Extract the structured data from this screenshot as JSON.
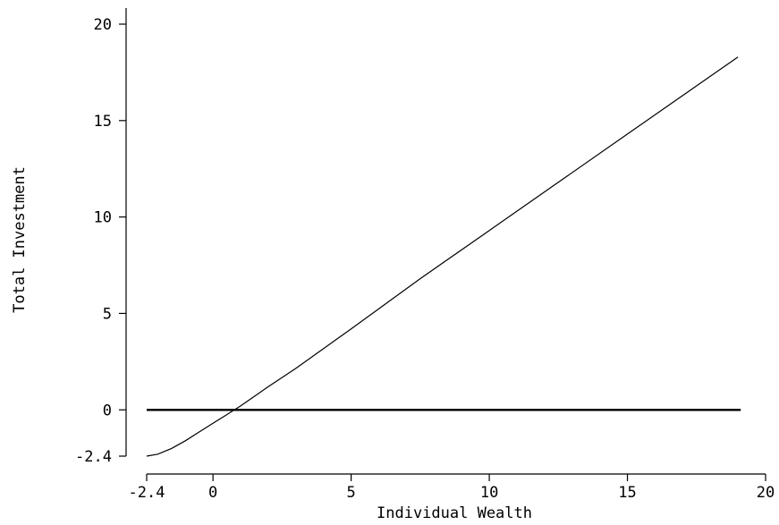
{
  "chart_data": {
    "type": "line",
    "title": "",
    "xlabel": "Individual Wealth",
    "ylabel": "Total Investment",
    "xlim": [
      -2.4,
      20
    ],
    "ylim": [
      -2.4,
      20
    ],
    "x_ticks": [
      -2.4,
      0,
      5,
      10,
      15,
      20
    ],
    "y_ticks": [
      -2.4,
      0,
      5,
      10,
      15,
      20
    ],
    "x_tick_labels": [
      "-2.4",
      "0",
      "5",
      "10",
      "15",
      "20"
    ],
    "y_tick_labels": [
      "-2.4",
      "0",
      "5",
      "10",
      "15",
      "20"
    ],
    "grid": false,
    "legend": "none",
    "series": [
      {
        "style": "thin",
        "x": [
          -2.4,
          -2.0,
          -1.5,
          -1.0,
          -0.5,
          0.0,
          0.5,
          1.0,
          2.0,
          3.0,
          5.0,
          7.5,
          10.0,
          12.5,
          15.0,
          17.5,
          19.0
        ],
        "y": [
          -2.4,
          -2.3,
          -2.0,
          -1.6,
          -1.15,
          -0.7,
          -0.25,
          0.2,
          1.2,
          2.15,
          4.2,
          6.8,
          9.3,
          11.8,
          14.3,
          16.8,
          18.3
        ]
      },
      {
        "style": "thick",
        "x": [
          -2.4,
          19.1
        ],
        "y": [
          0,
          0
        ]
      }
    ]
  }
}
